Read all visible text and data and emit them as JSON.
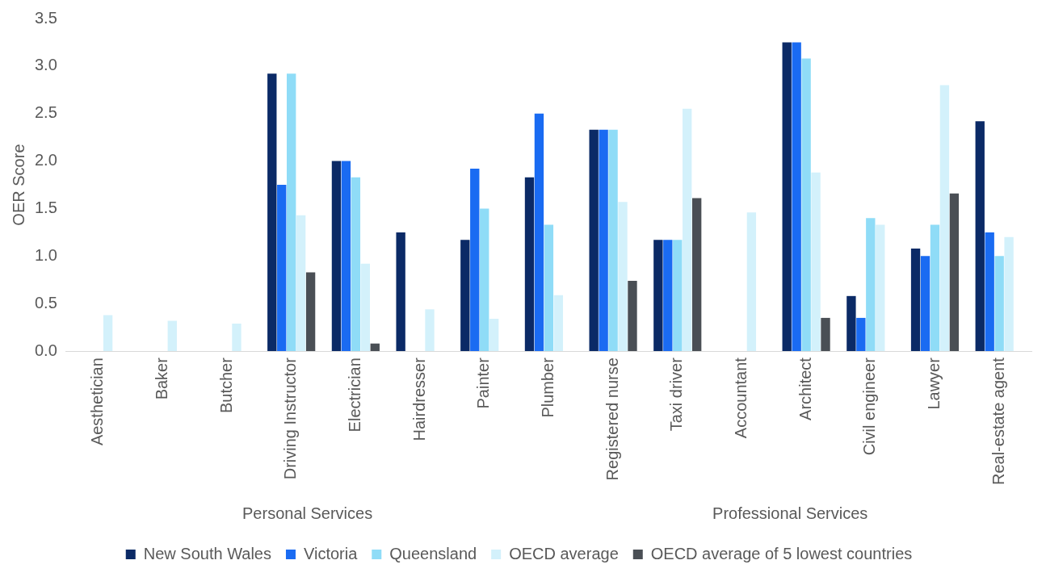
{
  "chart_data": {
    "type": "bar",
    "ylabel": "OER Score",
    "categories": [
      "Aesthetician",
      "Baker",
      "Butcher",
      "Driving Instructor",
      "Electrician",
      "Hairdresser",
      "Painter",
      "Plumber",
      "Registered nurse",
      "Taxi driver",
      "Accountant",
      "Architect",
      "Civil engineer",
      "Lawyer",
      "Real-estate agent"
    ],
    "series": [
      {
        "name": "New South Wales",
        "color": "#0b2a66",
        "values": [
          null,
          null,
          null,
          2.92,
          2.0,
          1.25,
          1.17,
          1.83,
          2.33,
          1.17,
          null,
          3.25,
          0.58,
          1.08,
          2.42
        ]
      },
      {
        "name": "Victoria",
        "color": "#1a6bf2",
        "values": [
          null,
          null,
          null,
          1.75,
          2.0,
          null,
          1.92,
          2.5,
          2.33,
          1.17,
          null,
          3.25,
          0.35,
          1.0,
          1.25
        ]
      },
      {
        "name": "Queensland",
        "color": "#8fdcf7",
        "values": [
          null,
          null,
          null,
          2.92,
          1.83,
          null,
          1.5,
          1.33,
          2.33,
          1.17,
          null,
          3.08,
          1.4,
          1.33,
          1.0
        ]
      },
      {
        "name": "OECD average",
        "color": "#d3f1fb",
        "values": [
          0.38,
          0.32,
          0.29,
          1.43,
          0.92,
          0.44,
          0.34,
          0.59,
          1.57,
          2.55,
          1.46,
          1.88,
          1.33,
          2.8,
          1.2
        ]
      },
      {
        "name": "OECD average of 5 lowest countries",
        "color": "#4a4f55",
        "values": [
          null,
          null,
          null,
          0.83,
          0.08,
          null,
          null,
          null,
          0.74,
          1.61,
          null,
          0.35,
          null,
          1.66,
          null
        ]
      }
    ],
    "ylim": [
      0,
      3.5
    ],
    "yticks": [
      {
        "value": 0,
        "label": "0.0"
      },
      {
        "value": 0.5,
        "label": "0.5"
      },
      {
        "value": 1,
        "label": "1.0"
      },
      {
        "value": 1.5,
        "label": "1.5"
      },
      {
        "value": 2,
        "label": "2.0"
      },
      {
        "value": 2.5,
        "label": "2.5"
      },
      {
        "value": 3,
        "label": "3.0"
      },
      {
        "value": 3.5,
        "label": "3.5"
      }
    ],
    "grid": false,
    "legend": "bottom",
    "annotations": [
      "Personal Services",
      "Professional Services"
    ]
  }
}
